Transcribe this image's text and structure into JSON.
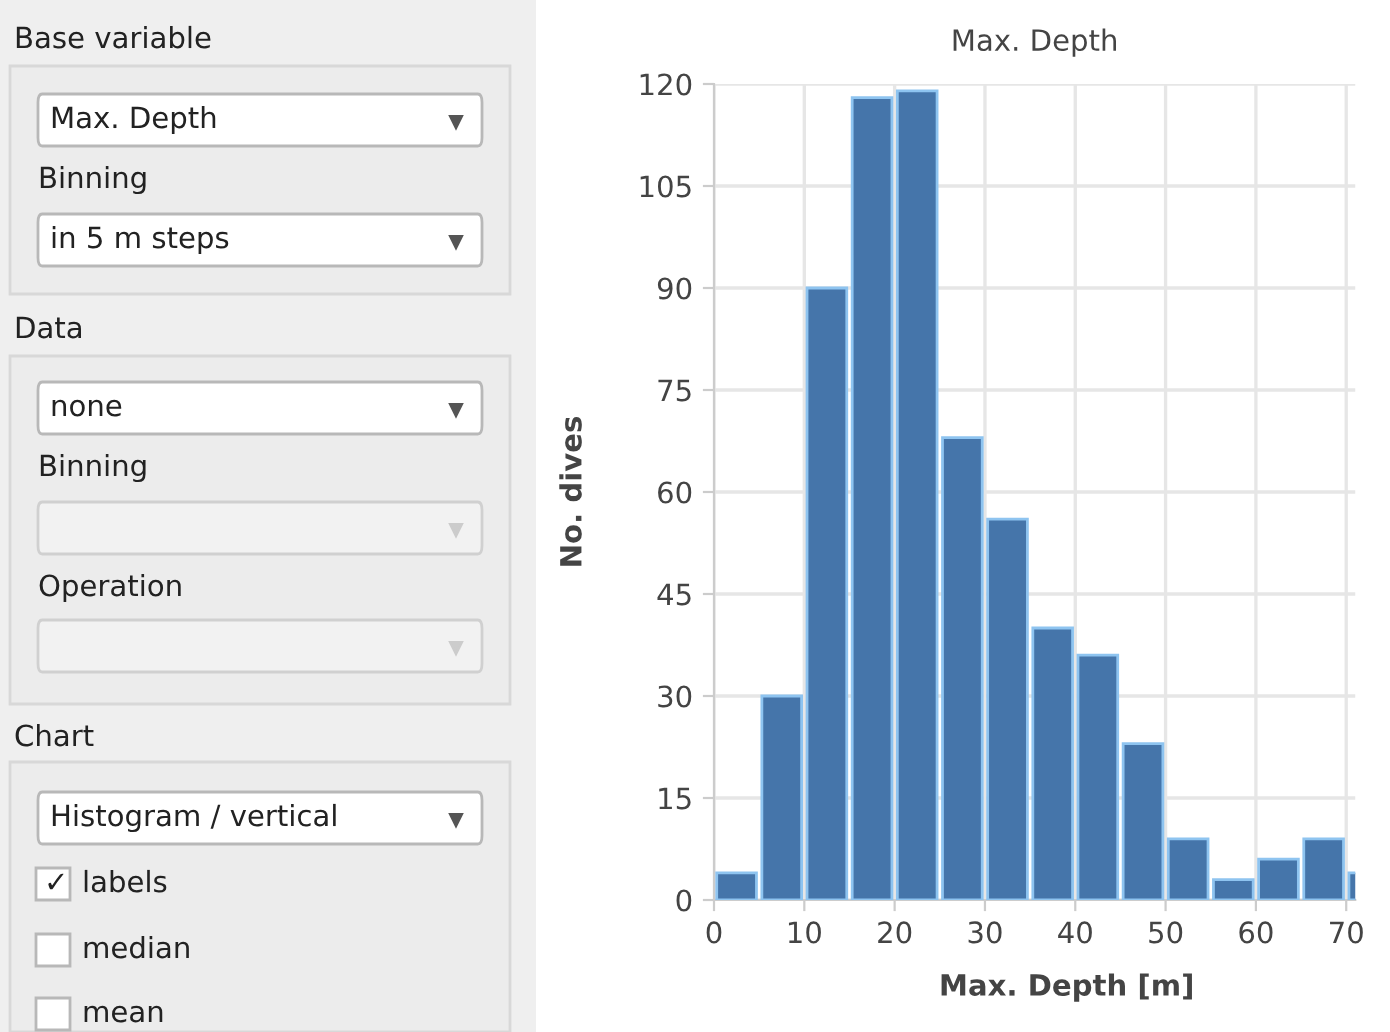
{
  "chart_data": [
    {
      "type": "other",
      "annotations": [
        "Base variable",
        "Max. Depth",
        "Binning",
        "in 5 m steps",
        "Data",
        "none",
        "Binning",
        "Operation",
        "Chart",
        "Histogram / vertical",
        "✓",
        "labels",
        "median",
        "mean"
      ]
    },
    {
      "type": "histogram",
      "title": "Max. Depth",
      "xlabel": "Max. Depth [m]",
      "ylabel": "No. dives",
      "bins": [
        0,
        5,
        10,
        15,
        20,
        25,
        30,
        35,
        40,
        45,
        50,
        55,
        60,
        65,
        70,
        75
      ],
      "values": [
        4,
        30,
        90,
        118,
        119,
        68,
        56,
        40,
        36,
        23,
        9,
        3,
        6,
        9,
        4
      ],
      "color": "#4575aa",
      "xlim": [
        0,
        71
      ],
      "xticks": [
        0,
        10,
        20,
        30,
        40,
        50,
        60,
        70
      ],
      "ylim": [
        0,
        120
      ],
      "yticks": [
        0,
        15,
        30,
        45,
        60,
        75,
        90,
        105,
        120
      ],
      "grid": true
    }
  ]
}
